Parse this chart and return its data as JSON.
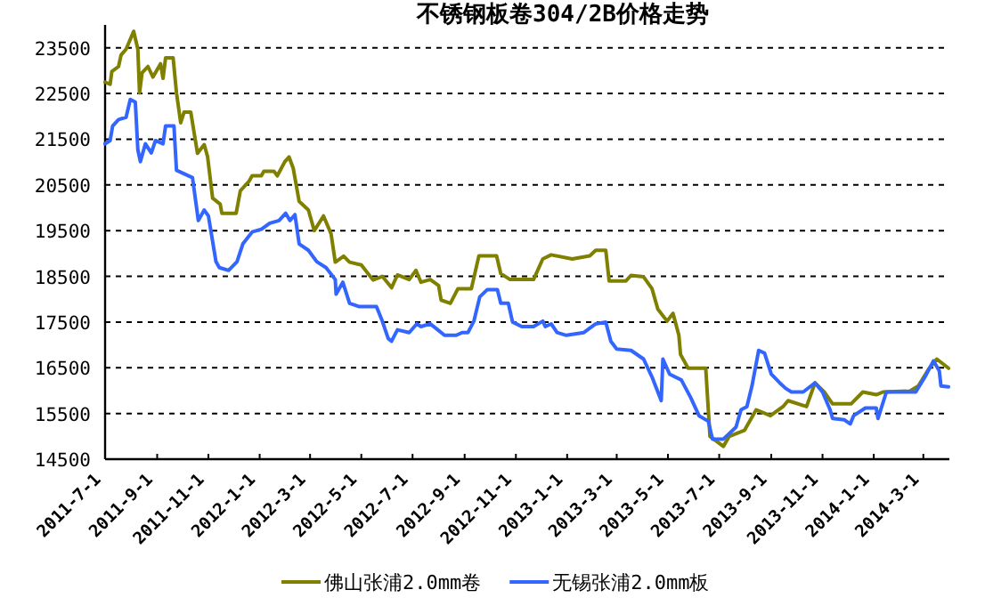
{
  "chart_data": {
    "type": "line",
    "title": "不锈钢板卷304/2B价格走势",
    "xlim": [
      "2011-07-01",
      "2014-04-01"
    ],
    "xticks": [
      {
        "value": "2011-07-01",
        "label": "2011-7-1"
      },
      {
        "value": "2011-09-01",
        "label": "2011-9-1"
      },
      {
        "value": "2011-11-01",
        "label": "2011-11-1"
      },
      {
        "value": "2012-01-01",
        "label": "2012-1-1"
      },
      {
        "value": "2012-03-01",
        "label": "2012-3-1"
      },
      {
        "value": "2012-05-01",
        "label": "2012-5-1"
      },
      {
        "value": "2012-07-01",
        "label": "2012-7-1"
      },
      {
        "value": "2012-09-01",
        "label": "2012-9-1"
      },
      {
        "value": "2012-11-01",
        "label": "2012-11-1"
      },
      {
        "value": "2013-01-01",
        "label": "2013-1-1"
      },
      {
        "value": "2013-03-01",
        "label": "2013-3-1"
      },
      {
        "value": "2013-05-01",
        "label": "2013-5-1"
      },
      {
        "value": "2013-07-01",
        "label": "2013-7-1"
      },
      {
        "value": "2013-09-01",
        "label": "2013-9-1"
      },
      {
        "value": "2013-11-01",
        "label": "2013-11-1"
      },
      {
        "value": "2014-01-01",
        "label": "2014-1-1"
      },
      {
        "value": "2014-03-01",
        "label": "2014-3-1"
      }
    ],
    "ylim": [
      14500,
      24000
    ],
    "yticks": [
      14500,
      15500,
      16500,
      17500,
      18500,
      19500,
      20500,
      21500,
      22500,
      23500
    ],
    "grid": "y",
    "legend": "bottom",
    "series": [
      {
        "name": "佛山张浦2.0mm卷",
        "color": "#808000",
        "x": [
          "2011-07-01",
          "2011-07-07",
          "2011-07-09",
          "2011-07-17",
          "2011-07-20",
          "2011-07-26",
          "2011-08-04",
          "2011-08-09",
          "2011-08-11",
          "2011-08-14",
          "2011-08-21",
          "2011-08-27",
          "2011-09-05",
          "2011-09-08",
          "2011-09-11",
          "2011-09-20",
          "2011-09-24",
          "2011-09-29",
          "2011-10-03",
          "2011-10-11",
          "2011-10-19",
          "2011-10-27",
          "2011-10-31",
          "2011-11-06",
          "2011-11-15",
          "2011-11-17",
          "2011-12-04",
          "2011-12-09",
          "2011-12-19",
          "2011-12-23",
          "2012-01-03",
          "2012-01-06",
          "2012-01-18",
          "2012-01-22",
          "2012-01-31",
          "2012-02-05",
          "2012-02-10",
          "2012-02-17",
          "2012-02-28",
          "2012-03-06",
          "2012-03-17",
          "2012-03-26",
          "2012-03-31",
          "2012-04-10",
          "2012-04-17",
          "2012-05-01",
          "2012-05-15",
          "2012-05-26",
          "2012-06-06",
          "2012-06-13",
          "2012-06-27",
          "2012-07-05",
          "2012-07-11",
          "2012-07-22",
          "2012-08-01",
          "2012-08-04",
          "2012-08-15",
          "2012-08-24",
          "2012-09-09",
          "2012-09-18",
          "2012-10-09",
          "2012-10-14",
          "2012-10-25",
          "2012-11-22",
          "2012-12-03",
          "2012-12-13",
          "2013-01-07",
          "2013-01-28",
          "2013-02-04",
          "2013-02-16",
          "2013-02-20",
          "2013-03-12",
          "2013-03-18",
          "2013-04-02",
          "2013-04-12",
          "2013-04-19",
          "2013-04-30",
          "2013-05-07",
          "2013-05-14",
          "2013-05-16",
          "2013-05-25",
          "2013-06-15",
          "2013-06-20",
          "2013-07-06",
          "2013-07-13",
          "2013-07-31",
          "2013-08-14",
          "2013-08-31",
          "2013-09-15",
          "2013-09-21",
          "2013-10-13",
          "2013-10-23",
          "2013-11-03",
          "2013-11-13",
          "2013-12-05",
          "2013-12-19",
          "2014-01-04",
          "2014-01-12",
          "2014-02-13",
          "2014-02-23",
          "2014-03-07",
          "2014-03-17",
          "2014-03-31"
        ],
        "values": [
          22750,
          22700,
          22980,
          23090,
          23340,
          23470,
          23860,
          23470,
          22510,
          22950,
          23090,
          22860,
          23150,
          22830,
          23280,
          23280,
          22510,
          21860,
          22090,
          22090,
          21190,
          21380,
          21120,
          20210,
          20080,
          19880,
          19880,
          20370,
          20570,
          20700,
          20700,
          20800,
          20800,
          20700,
          21010,
          21110,
          20860,
          20140,
          19950,
          19500,
          19820,
          19430,
          18810,
          18940,
          18810,
          18750,
          18420,
          18500,
          18250,
          18530,
          18430,
          18630,
          18370,
          18430,
          18300,
          17980,
          17910,
          18230,
          18230,
          18950,
          18950,
          18560,
          18430,
          18430,
          18880,
          18970,
          18880,
          18950,
          19070,
          19070,
          18400,
          18400,
          18520,
          18490,
          18230,
          17780,
          17520,
          17690,
          17210,
          16790,
          16490,
          16490,
          15000,
          14780,
          15000,
          15130,
          15580,
          15450,
          15650,
          15780,
          15650,
          16170,
          15970,
          15710,
          15710,
          15970,
          15910,
          15970,
          15990,
          16100,
          16460,
          16690,
          16490
        ]
      },
      {
        "name": "无锡张浦2.0mm板",
        "color": "#3366ff",
        "x": [
          "2011-07-01",
          "2011-07-07",
          "2011-07-10",
          "2011-07-17",
          "2011-07-26",
          "2011-07-31",
          "2011-08-06",
          "2011-08-09",
          "2011-08-12",
          "2011-08-18",
          "2011-08-25",
          "2011-08-30",
          "2011-09-08",
          "2011-09-11",
          "2011-09-21",
          "2011-09-24",
          "2011-10-13",
          "2011-10-20",
          "2011-10-27",
          "2011-11-01",
          "2011-11-10",
          "2011-11-14",
          "2011-11-25",
          "2011-12-05",
          "2011-12-12",
          "2011-12-23",
          "2012-01-03",
          "2012-01-13",
          "2012-01-24",
          "2012-02-01",
          "2012-02-06",
          "2012-02-12",
          "2012-02-17",
          "2012-02-28",
          "2012-03-09",
          "2012-03-20",
          "2012-03-31",
          "2012-04-01",
          "2012-04-09",
          "2012-04-17",
          "2012-04-28",
          "2012-05-19",
          "2012-05-26",
          "2012-06-02",
          "2012-06-06",
          "2012-06-13",
          "2012-06-27",
          "2012-07-06",
          "2012-07-11",
          "2012-07-22",
          "2012-07-29",
          "2012-08-08",
          "2012-08-22",
          "2012-08-29",
          "2012-09-05",
          "2012-09-12",
          "2012-09-19",
          "2012-09-28",
          "2012-10-10",
          "2012-10-14",
          "2012-10-23",
          "2012-10-28",
          "2012-11-08",
          "2012-11-22",
          "2012-12-03",
          "2012-12-06",
          "2012-12-13",
          "2012-12-20",
          "2012-12-31",
          "2013-01-21",
          "2013-02-04",
          "2013-02-16",
          "2013-02-22",
          "2013-03-01",
          "2013-03-18",
          "2013-04-02",
          "2013-04-12",
          "2013-04-19",
          "2013-04-23",
          "2013-04-25",
          "2013-05-03",
          "2013-05-17",
          "2013-05-28",
          "2013-06-07",
          "2013-06-18",
          "2013-06-23",
          "2013-07-06",
          "2013-07-13",
          "2013-07-21",
          "2013-07-27",
          "2013-08-03",
          "2013-08-09",
          "2013-08-17",
          "2013-08-24",
          "2013-09-01",
          "2013-09-11",
          "2013-09-18",
          "2013-09-25",
          "2013-10-09",
          "2013-10-23",
          "2013-11-01",
          "2013-11-10",
          "2013-11-13",
          "2013-11-27",
          "2013-12-04",
          "2013-12-08",
          "2013-12-22",
          "2014-01-04",
          "2014-01-06",
          "2014-01-16",
          "2014-02-20",
          "2014-03-03",
          "2014-03-13",
          "2014-03-20",
          "2014-03-22",
          "2014-03-31"
        ],
        "values": [
          21400,
          21470,
          21790,
          21930,
          21980,
          22370,
          22310,
          21270,
          21010,
          21400,
          21200,
          21470,
          21400,
          21790,
          21790,
          20820,
          20660,
          19720,
          19950,
          19820,
          18820,
          18690,
          18630,
          18820,
          19210,
          19470,
          19530,
          19660,
          19720,
          19880,
          19720,
          19850,
          19210,
          19070,
          18820,
          18690,
          18430,
          18110,
          18370,
          17910,
          17840,
          17840,
          17520,
          17140,
          17080,
          17330,
          17270,
          17460,
          17400,
          17460,
          17360,
          17210,
          17210,
          17270,
          17270,
          17520,
          18050,
          18210,
          18210,
          17910,
          17910,
          17500,
          17400,
          17400,
          17520,
          17400,
          17460,
          17270,
          17210,
          17270,
          17460,
          17500,
          17080,
          16910,
          16880,
          16690,
          16300,
          15970,
          15780,
          16690,
          16360,
          16230,
          15850,
          15450,
          15330,
          14940,
          14940,
          15060,
          15200,
          15580,
          15650,
          16100,
          16880,
          16820,
          16360,
          16170,
          16050,
          15970,
          15970,
          16170,
          15970,
          15580,
          15390,
          15360,
          15270,
          15450,
          15620,
          15620,
          15390,
          15970,
          15970,
          16300,
          16650,
          16430,
          16100,
          16080
        ]
      }
    ]
  }
}
